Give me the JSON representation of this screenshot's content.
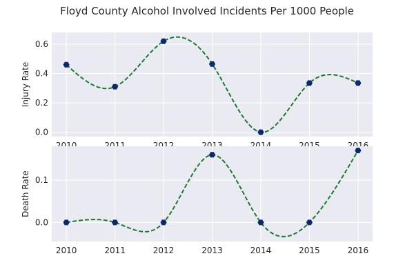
{
  "chart_data": {
    "title": "Floyd County Alcohol Involved Incidents Per 1000 People",
    "colors": {
      "background": "#eaeaf2",
      "grid": "#ffffff",
      "line": "#1a7a2a",
      "marker": "#0b2a6e"
    },
    "panels": [
      {
        "type": "line",
        "style": "smooth dashed curve with markers",
        "ylabel": "Injury Rate",
        "x": [
          2010,
          2011,
          2012,
          2013,
          2014,
          2015,
          2016
        ],
        "y": [
          0.46,
          0.31,
          0.62,
          0.465,
          0.0,
          0.335,
          0.335
        ],
        "xticks": [
          "2010",
          "2011",
          "2012",
          "2013",
          "2014",
          "2015",
          "2016"
        ],
        "yticks": [
          "0.0",
          "0.2",
          "0.4",
          "0.6"
        ],
        "ytick_values": [
          0.0,
          0.2,
          0.4,
          0.6
        ],
        "xlim": [
          2009.7,
          2016.3
        ],
        "ylim": [
          -0.03,
          0.68
        ],
        "grid": true
      },
      {
        "type": "line",
        "style": "smooth dashed curve with markers",
        "ylabel": "Death Rate",
        "x": [
          2010,
          2011,
          2012,
          2013,
          2014,
          2015,
          2016
        ],
        "y": [
          0.0,
          0.0,
          0.0,
          0.16,
          0.0,
          0.0,
          0.17
        ],
        "xticks": [
          "2010",
          "2011",
          "2012",
          "2013",
          "2014",
          "2015",
          "2016"
        ],
        "yticks": [
          "0.0",
          "0.1"
        ],
        "ytick_values": [
          0.0,
          0.1
        ],
        "xlim": [
          2009.7,
          2016.3
        ],
        "ylim": [
          -0.045,
          0.18
        ],
        "grid": true
      }
    ]
  }
}
